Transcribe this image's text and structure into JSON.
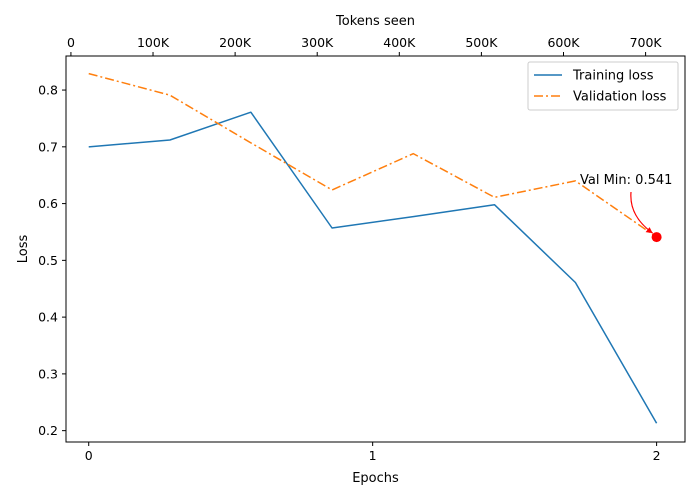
{
  "chart_data": {
    "type": "line",
    "title": "",
    "xlabel": "Epochs",
    "ylabel": "Loss",
    "top_xlabel": "Tokens seen",
    "xlim": [
      -0.08,
      2.1
    ],
    "ylim": [
      0.18,
      0.86
    ],
    "x_ticks": [
      {
        "value": 0,
        "label": "0"
      },
      {
        "value": 1,
        "label": "1"
      },
      {
        "value": 2,
        "label": "2"
      }
    ],
    "y_ticks": [
      {
        "value": 0.2,
        "label": "0.2"
      },
      {
        "value": 0.3,
        "label": "0.3"
      },
      {
        "value": 0.4,
        "label": "0.4"
      },
      {
        "value": 0.5,
        "label": "0.5"
      },
      {
        "value": 0.6,
        "label": "0.6"
      },
      {
        "value": 0.7,
        "label": "0.7"
      },
      {
        "value": 0.8,
        "label": "0.8"
      }
    ],
    "top_ticks": [
      {
        "value": 0,
        "label": "0"
      },
      {
        "value": 100000,
        "label": "100K"
      },
      {
        "value": 200000,
        "label": "200K"
      },
      {
        "value": 300000,
        "label": "300K"
      },
      {
        "value": 400000,
        "label": "400K"
      },
      {
        "value": 500000,
        "label": "500K"
      },
      {
        "value": 600000,
        "label": "600K"
      },
      {
        "value": 700000,
        "label": "700K"
      }
    ],
    "top_xlim": [
      -6000,
      748000
    ],
    "series": [
      {
        "name": "Training loss",
        "color": "#1f77b4",
        "style": "solid",
        "x": [
          0,
          0.286,
          0.571,
          0.857,
          1.143,
          1.429,
          1.714,
          2.0
        ],
        "y": [
          0.7,
          0.712,
          0.761,
          0.557,
          0.577,
          0.598,
          0.461,
          0.213
        ]
      },
      {
        "name": "Validation loss",
        "color": "#ff7f0e",
        "style": "dashdot",
        "x": [
          0,
          0.286,
          0.571,
          0.857,
          1.143,
          1.429,
          1.714,
          2.0
        ],
        "y": [
          0.829,
          0.791,
          0.707,
          0.624,
          0.688,
          0.611,
          0.64,
          0.541
        ]
      }
    ],
    "annotation": {
      "text": "Val Min: 0.541",
      "x": 2.0,
      "y": 0.541,
      "color": "#ff0000"
    },
    "legend_position": "top-right"
  }
}
